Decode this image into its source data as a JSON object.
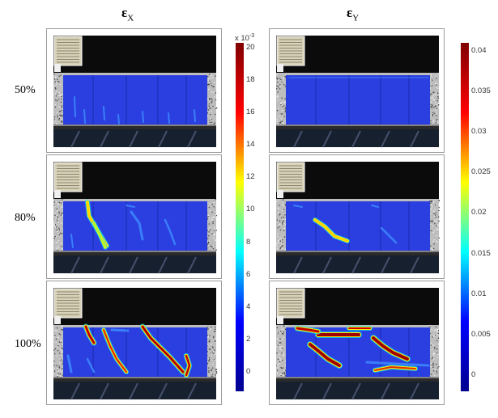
{
  "columns": [
    {
      "symbol": "ε",
      "subscript": "X"
    },
    {
      "symbol": "ε",
      "subscript": "Y"
    }
  ],
  "rows": [
    "50%",
    "80%",
    "100%"
  ],
  "colorbar_x": {
    "multiplier_base": "x 10",
    "multiplier_exp": "-3",
    "ticks": [
      "20",
      "18",
      "16",
      "14",
      "12",
      "10",
      "8",
      "6",
      "4",
      "2",
      "0"
    ],
    "range": [
      -1.2,
      20.3
    ]
  },
  "colorbar_y": {
    "ticks": [
      "0.04",
      "0.035",
      "0.03",
      "0.025",
      "0.02",
      "0.015",
      "0.01",
      "0.005",
      "0"
    ],
    "range": [
      -0.002,
      0.041
    ]
  },
  "colors": {
    "colormap": [
      "#00008f",
      "#0000ff",
      "#00ffff",
      "#ffff00",
      "#ff0000",
      "#800000"
    ],
    "field_blue": "#2b3fe0",
    "background": "#ffffff"
  }
}
